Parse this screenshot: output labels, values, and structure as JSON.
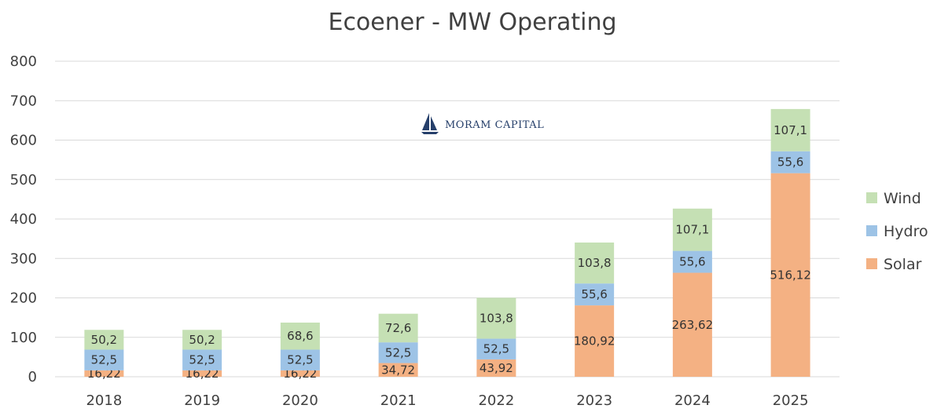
{
  "chart_data": {
    "type": "bar",
    "stacked": true,
    "title": "Ecoener - MW Operating",
    "xlabel": "",
    "ylabel": "",
    "categories": [
      "2018",
      "2019",
      "2020",
      "2021",
      "2022",
      "2023",
      "2024",
      "2025"
    ],
    "series": [
      {
        "name": "Solar",
        "color": "#f4b183",
        "values": [
          16.22,
          16.22,
          16.22,
          34.72,
          43.92,
          180.92,
          263.62,
          516.12
        ],
        "labels": [
          "16,22",
          "16,22",
          "16,22",
          "34,72",
          "43,92",
          "180,92",
          "263,62",
          "516,12"
        ]
      },
      {
        "name": "Hydro",
        "color": "#9dc3e6",
        "values": [
          52.5,
          52.5,
          52.5,
          52.5,
          52.5,
          55.6,
          55.6,
          55.6
        ],
        "labels": [
          "52,5",
          "52,5",
          "52,5",
          "52,5",
          "52,5",
          "55,6",
          "55,6",
          "55,6"
        ]
      },
      {
        "name": "Wind",
        "color": "#c5e0b4",
        "values": [
          50.2,
          50.2,
          68.6,
          72.6,
          103.8,
          103.8,
          107.1,
          107.1
        ],
        "labels": [
          "50,2",
          "50,2",
          "68,6",
          "72,6",
          "103,8",
          "103,8",
          "107,1",
          "107,1"
        ]
      }
    ],
    "ylim": [
      0,
      800
    ],
    "yticks": [
      0,
      100,
      200,
      300,
      400,
      500,
      600,
      700,
      800
    ],
    "grid": true,
    "legend": "right",
    "legend_order": [
      "Wind",
      "Hydro",
      "Solar"
    ]
  },
  "watermark": {
    "text": "MORAM CAPITAL",
    "icon": "sailboat-icon",
    "color": "#27406b"
  }
}
